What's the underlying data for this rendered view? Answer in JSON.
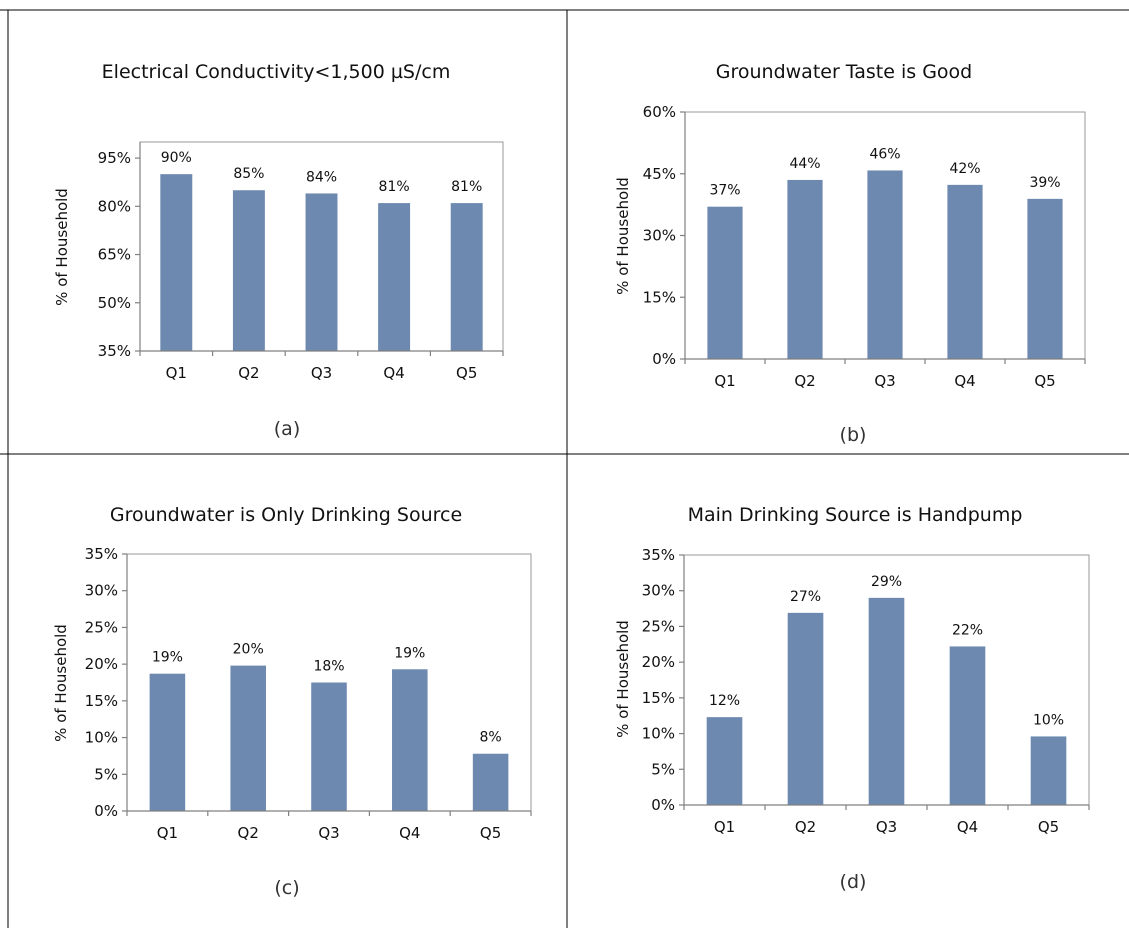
{
  "colors": {
    "bar": "#6d89b0",
    "axis": "#808080",
    "plot_border": "#999999",
    "divider": "#000000"
  },
  "chart_data": [
    {
      "id": "a",
      "type": "bar",
      "title": "Electrical Conductivity<1,500 µS/cm",
      "ylabel": "% of Household",
      "xlabel": "",
      "caption": "(a)",
      "categories": [
        "Q1",
        "Q2",
        "Q3",
        "Q4",
        "Q5"
      ],
      "values": [
        90,
        85,
        84,
        81,
        81
      ],
      "data_labels": [
        "90%",
        "85%",
        "84%",
        "81%",
        "81%"
      ],
      "ylim": [
        35,
        100
      ],
      "yticks": [
        35,
        50,
        65,
        80,
        95
      ],
      "ytick_labels": [
        "35%",
        "50%",
        "65%",
        "80%",
        "95%"
      ],
      "grid": false
    },
    {
      "id": "b",
      "type": "bar",
      "title": "Groundwater Taste is Good",
      "ylabel": "% of Household",
      "xlabel": "",
      "caption": "(b)",
      "categories": [
        "Q1",
        "Q2",
        "Q3",
        "Q4",
        "Q5"
      ],
      "values": [
        37,
        43.5,
        45.8,
        42.3,
        38.9
      ],
      "data_labels": [
        "37%",
        "44%",
        "46%",
        "42%",
        "39%"
      ],
      "ylim": [
        0,
        60
      ],
      "yticks": [
        0,
        15,
        30,
        45,
        60
      ],
      "ytick_labels": [
        "0%",
        "15%",
        "30%",
        "45%",
        "60%"
      ],
      "grid": false
    },
    {
      "id": "c",
      "type": "bar",
      "title": "Groundwater is Only Drinking Source",
      "ylabel": "% of Household",
      "xlabel": "",
      "caption": "(c)",
      "categories": [
        "Q1",
        "Q2",
        "Q3",
        "Q4",
        "Q5"
      ],
      "values": [
        18.7,
        19.8,
        17.5,
        19.3,
        7.8
      ],
      "data_labels": [
        "19%",
        "20%",
        "18%",
        "19%",
        "8%"
      ],
      "ylim": [
        0,
        35
      ],
      "yticks": [
        0,
        5,
        10,
        15,
        20,
        25,
        30,
        35
      ],
      "ytick_labels": [
        "0%",
        "5%",
        "10%",
        "15%",
        "20%",
        "25%",
        "30%",
        "35%"
      ],
      "grid": false
    },
    {
      "id": "d",
      "type": "bar",
      "title": "Main Drinking Source is Handpump",
      "ylabel": "% of Household",
      "xlabel": "",
      "caption": "(d)",
      "categories": [
        "Q1",
        "Q2",
        "Q3",
        "Q4",
        "Q5"
      ],
      "values": [
        12.3,
        26.9,
        29.0,
        22.2,
        9.6
      ],
      "data_labels": [
        "12%",
        "27%",
        "29%",
        "22%",
        "10%"
      ],
      "ylim": [
        0,
        35
      ],
      "yticks": [
        0,
        5,
        10,
        15,
        20,
        25,
        30,
        35
      ],
      "ytick_labels": [
        "0%",
        "5%",
        "10%",
        "15%",
        "20%",
        "25%",
        "30%",
        "35%"
      ],
      "grid": false
    }
  ]
}
